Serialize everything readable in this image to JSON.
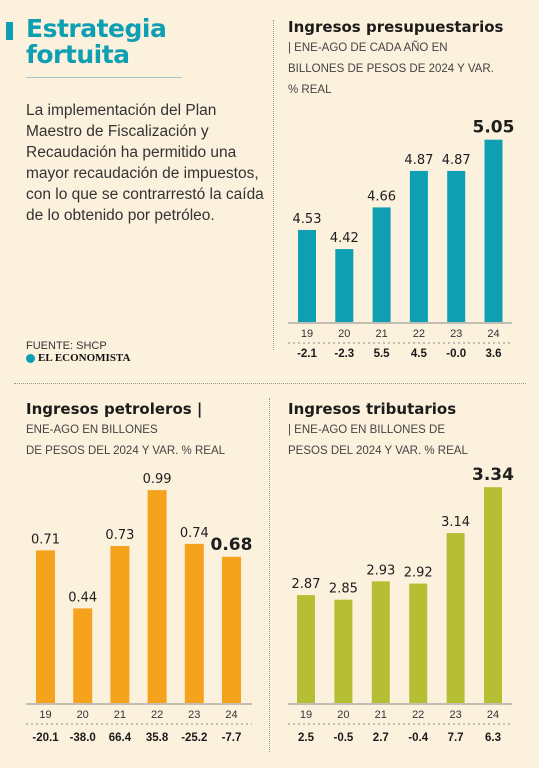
{
  "header": {
    "title": "Estrategia fortuita",
    "intro": "La implementación del Plan Maestro de Fiscalización y Recaudación ha permitido una mayor recaudación de impuestos, con lo que se contrarrestó la caída de lo obtenido por petróleo."
  },
  "footer": {
    "source": "FUENTE: SHCP",
    "brand": "EL ECONOMISTA"
  },
  "colors": {
    "accent": "#0f9fb3",
    "background": "#fcf1dd",
    "presupuestarios": "#0f9fb3",
    "petroleros": "#f5a21c",
    "tributarios": "#b6bf33"
  },
  "chart_data": [
    {
      "id": "presupuestarios",
      "type": "bar",
      "title": "Ingresos presupuestarios",
      "subtitle_line1": "| ENE-AGO DE CADA AÑO EN",
      "subtitle_line2": "BILLONES DE PESOS DE 2024 Y VAR.",
      "subtitle_line3": "% REAL",
      "categories": [
        "19",
        "20",
        "21",
        "22",
        "23",
        "24"
      ],
      "values": [
        4.53,
        4.42,
        4.66,
        4.87,
        4.87,
        5.05
      ],
      "value_labels": [
        "4.53",
        "4.42",
        "4.66",
        "4.87",
        "4.87",
        "5.05"
      ],
      "changes": [
        "-2.1",
        "-2.3",
        "5.5",
        "4.5",
        "-0.0",
        "3.6"
      ],
      "ylim": [
        4.0,
        5.1
      ]
    },
    {
      "id": "petroleros",
      "type": "bar",
      "title": "Ingresos petroleros |",
      "subtitle_line1": "ENE-AGO EN BILLONES",
      "subtitle_line2": "DE PESOS DEL 2024 Y VAR. % REAL",
      "categories": [
        "19",
        "20",
        "21",
        "22",
        "23",
        "24"
      ],
      "values": [
        0.71,
        0.44,
        0.73,
        0.99,
        0.74,
        0.68
      ],
      "value_labels": [
        "0.71",
        "0.44",
        "0.73",
        "0.99",
        "0.74",
        "0.68"
      ],
      "changes": [
        "-20.1",
        "-38.0",
        "66.4",
        "35.8",
        "-25.2",
        "-7.7"
      ],
      "ylim": [
        0,
        1.0
      ]
    },
    {
      "id": "tributarios",
      "type": "bar",
      "title": "Ingresos tributarios",
      "subtitle_line1": "| ENE-AGO EN BILLONES DE",
      "subtitle_line2": "PESOS DEL 2024 Y VAR. % REAL",
      "categories": [
        "19",
        "20",
        "21",
        "22",
        "23",
        "24"
      ],
      "values": [
        2.87,
        2.85,
        2.93,
        2.92,
        3.14,
        3.34
      ],
      "value_labels": [
        "2.87",
        "2.85",
        "2.93",
        "2.92",
        "3.14",
        "3.34"
      ],
      "changes": [
        "2.5",
        "-0.5",
        "2.7",
        "-0.4",
        "7.7",
        "6.3"
      ],
      "ylim": [
        2.4,
        3.38
      ]
    }
  ]
}
